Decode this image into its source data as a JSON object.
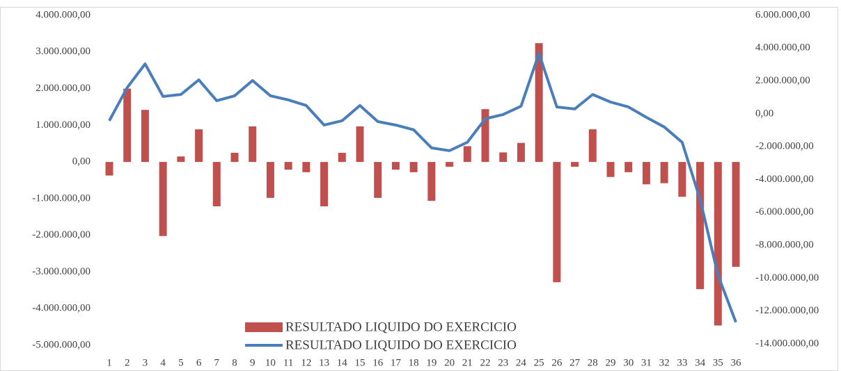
{
  "chart_data": {
    "type": "bar_line",
    "categories": [
      "1",
      "2",
      "3",
      "4",
      "5",
      "6",
      "7",
      "8",
      "9",
      "10",
      "11",
      "12",
      "13",
      "14",
      "15",
      "16",
      "17",
      "18",
      "19",
      "20",
      "21",
      "22",
      "23",
      "24",
      "25",
      "26",
      "27",
      "28",
      "29",
      "30",
      "31",
      "32",
      "33",
      "34",
      "35",
      "36"
    ],
    "series": [
      {
        "name": "RESULTADO LIQUIDO DO EXERCICIO",
        "type": "bar",
        "color": "#c0504d",
        "values": [
          -370000,
          2000000,
          1420000,
          -2020000,
          150000,
          890000,
          -1210000,
          250000,
          970000,
          -980000,
          -210000,
          -280000,
          -1210000,
          250000,
          970000,
          -980000,
          -210000,
          -280000,
          -1060000,
          -130000,
          430000,
          1440000,
          260000,
          520000,
          3240000,
          -3280000,
          -130000,
          890000,
          -410000,
          -280000,
          -610000,
          -580000,
          -950000,
          -3470000,
          -4460000,
          -2860000
        ]
      },
      {
        "name": "RESULTADO LIQUIDO DO EXERCICIO",
        "type": "line",
        "axis": "y2",
        "color": "#4a7ebb",
        "values": [
          -420000,
          1600000,
          3040000,
          1060000,
          1180000,
          2070000,
          800000,
          1100000,
          2030000,
          1100000,
          850000,
          510000,
          -680000,
          -420000,
          510000,
          -470000,
          -680000,
          -970000,
          -2070000,
          -2240000,
          -1730000,
          -300000,
          -40000,
          470000,
          3680000,
          420000,
          300000,
          1180000,
          720000,
          420000,
          -210000,
          -800000,
          -1730000,
          -5200000,
          -9810000,
          -12680000
        ]
      }
    ],
    "ylim": [
      -5000000,
      4000000
    ],
    "yticks": [
      {
        "value": 4000000,
        "label": "4.000.000,00"
      },
      {
        "value": 3000000,
        "label": "3.000.000,00"
      },
      {
        "value": 2000000,
        "label": "2.000.000,00"
      },
      {
        "value": 1000000,
        "label": "1.000.000,00"
      },
      {
        "value": 0,
        "label": "0,00"
      },
      {
        "value": -1000000,
        "label": "-1.000.000,00"
      },
      {
        "value": -2000000,
        "label": "-2.000.000,00"
      },
      {
        "value": -3000000,
        "label": "-3.000.000,00"
      },
      {
        "value": -4000000,
        "label": "-4.000.000,00"
      },
      {
        "value": -5000000,
        "label": "-5.000.000,00"
      }
    ],
    "y2lim": [
      -14000000,
      6000000
    ],
    "y2ticks": [
      {
        "value": 6000000,
        "label": "6.000.000,00"
      },
      {
        "value": 4000000,
        "label": "4.000.000,00"
      },
      {
        "value": 2000000,
        "label": "2.000.000,00"
      },
      {
        "value": 0,
        "label": "0,00"
      },
      {
        "value": -2000000,
        "label": "-2.000.000,00"
      },
      {
        "value": -4000000,
        "label": "-4.000.000,00"
      },
      {
        "value": -6000000,
        "label": "-6.000.000,00"
      },
      {
        "value": -8000000,
        "label": "-8.000.000,00"
      },
      {
        "value": -10000000,
        "label": "-10.000.000,00"
      },
      {
        "value": -12000000,
        "label": "-12.000.000,00"
      },
      {
        "value": -14000000,
        "label": "-14.000.000,00"
      }
    ],
    "legend": "bottom"
  }
}
